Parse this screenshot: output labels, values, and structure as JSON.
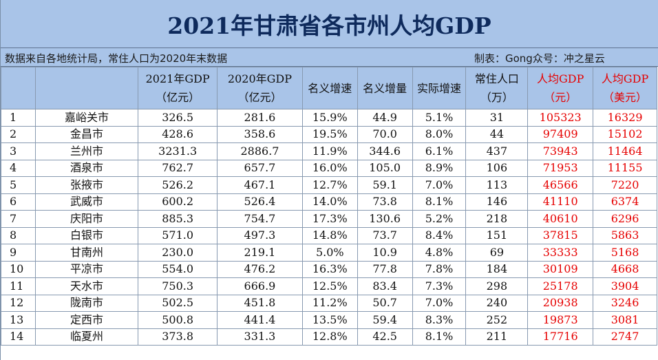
{
  "title": "2021年甘肃省各市州人均GDP",
  "subtitle_left": "数据来自各地统计局，常住人口为2020年末数据",
  "subtitle_right": "制表：Gong众号：冲之星云",
  "headers": {
    "gdp2021": [
      "2021年GDP",
      "（亿元）"
    ],
    "gdp2020": [
      "2020年GDP",
      "（亿元）"
    ],
    "nominal_rate": "名义增速",
    "nominal_inc": "名义增量",
    "real_rate": "实际增速",
    "pop": [
      "常住人口",
      "（万）"
    ],
    "pc_cny": [
      "人均GDP",
      "（元）"
    ],
    "pc_usd": [
      "人均GDP",
      "（美元）"
    ]
  },
  "rows": [
    {
      "idx": "1",
      "city": "嘉峪关市",
      "gdp2021": "326.5",
      "gdp2020": "281.6",
      "nominal_rate": "15.9%",
      "nominal_inc": "44.9",
      "real_rate": "5.1%",
      "pop": "31",
      "pc_cny": "105323",
      "pc_usd": "16329"
    },
    {
      "idx": "2",
      "city": "金昌市",
      "gdp2021": "428.6",
      "gdp2020": "358.6",
      "nominal_rate": "19.5%",
      "nominal_inc": "70.0",
      "real_rate": "8.0%",
      "pop": "44",
      "pc_cny": "97409",
      "pc_usd": "15102"
    },
    {
      "idx": "3",
      "city": "兰州市",
      "gdp2021": "3231.3",
      "gdp2020": "2886.7",
      "nominal_rate": "11.9%",
      "nominal_inc": "344.6",
      "real_rate": "6.1%",
      "pop": "437",
      "pc_cny": "73943",
      "pc_usd": "11464"
    },
    {
      "idx": "4",
      "city": "酒泉市",
      "gdp2021": "762.7",
      "gdp2020": "657.7",
      "nominal_rate": "16.0%",
      "nominal_inc": "105.0",
      "real_rate": "8.9%",
      "pop": "106",
      "pc_cny": "71953",
      "pc_usd": "11155"
    },
    {
      "idx": "5",
      "city": "张掖市",
      "gdp2021": "526.2",
      "gdp2020": "467.1",
      "nominal_rate": "12.7%",
      "nominal_inc": "59.1",
      "real_rate": "7.0%",
      "pop": "113",
      "pc_cny": "46566",
      "pc_usd": "7220"
    },
    {
      "idx": "6",
      "city": "武威市",
      "gdp2021": "600.2",
      "gdp2020": "526.4",
      "nominal_rate": "14.0%",
      "nominal_inc": "73.8",
      "real_rate": "8.1%",
      "pop": "146",
      "pc_cny": "41110",
      "pc_usd": "6374"
    },
    {
      "idx": "7",
      "city": "庆阳市",
      "gdp2021": "885.3",
      "gdp2020": "754.7",
      "nominal_rate": "17.3%",
      "nominal_inc": "130.6",
      "real_rate": "5.2%",
      "pop": "218",
      "pc_cny": "40610",
      "pc_usd": "6296"
    },
    {
      "idx": "8",
      "city": "白银市",
      "gdp2021": "571.0",
      "gdp2020": "497.3",
      "nominal_rate": "14.8%",
      "nominal_inc": "73.7",
      "real_rate": "8.4%",
      "pop": "151",
      "pc_cny": "37815",
      "pc_usd": "5863"
    },
    {
      "idx": "9",
      "city": "甘南州",
      "gdp2021": "230.0",
      "gdp2020": "219.1",
      "nominal_rate": "5.0%",
      "nominal_inc": "10.9",
      "real_rate": "4.8%",
      "pop": "69",
      "pc_cny": "33333",
      "pc_usd": "5168"
    },
    {
      "idx": "10",
      "city": "平凉市",
      "gdp2021": "554.0",
      "gdp2020": "476.2",
      "nominal_rate": "16.3%",
      "nominal_inc": "77.8",
      "real_rate": "7.8%",
      "pop": "184",
      "pc_cny": "30109",
      "pc_usd": "4668"
    },
    {
      "idx": "11",
      "city": "天水市",
      "gdp2021": "750.3",
      "gdp2020": "666.9",
      "nominal_rate": "12.5%",
      "nominal_inc": "83.4",
      "real_rate": "7.3%",
      "pop": "298",
      "pc_cny": "25178",
      "pc_usd": "3904"
    },
    {
      "idx": "12",
      "city": "陇南市",
      "gdp2021": "502.5",
      "gdp2020": "451.8",
      "nominal_rate": "11.2%",
      "nominal_inc": "50.7",
      "real_rate": "7.0%",
      "pop": "240",
      "pc_cny": "20938",
      "pc_usd": "3246"
    },
    {
      "idx": "13",
      "city": "定西市",
      "gdp2021": "500.8",
      "gdp2020": "441.4",
      "nominal_rate": "13.5%",
      "nominal_inc": "59.4",
      "real_rate": "8.3%",
      "pop": "252",
      "pc_cny": "19873",
      "pc_usd": "3081"
    },
    {
      "idx": "14",
      "city": "临夏州",
      "gdp2021": "373.8",
      "gdp2020": "331.3",
      "nominal_rate": "12.8%",
      "nominal_inc": "42.5",
      "real_rate": "8.1%",
      "pop": "211",
      "pc_cny": "17716",
      "pc_usd": "2747"
    }
  ]
}
